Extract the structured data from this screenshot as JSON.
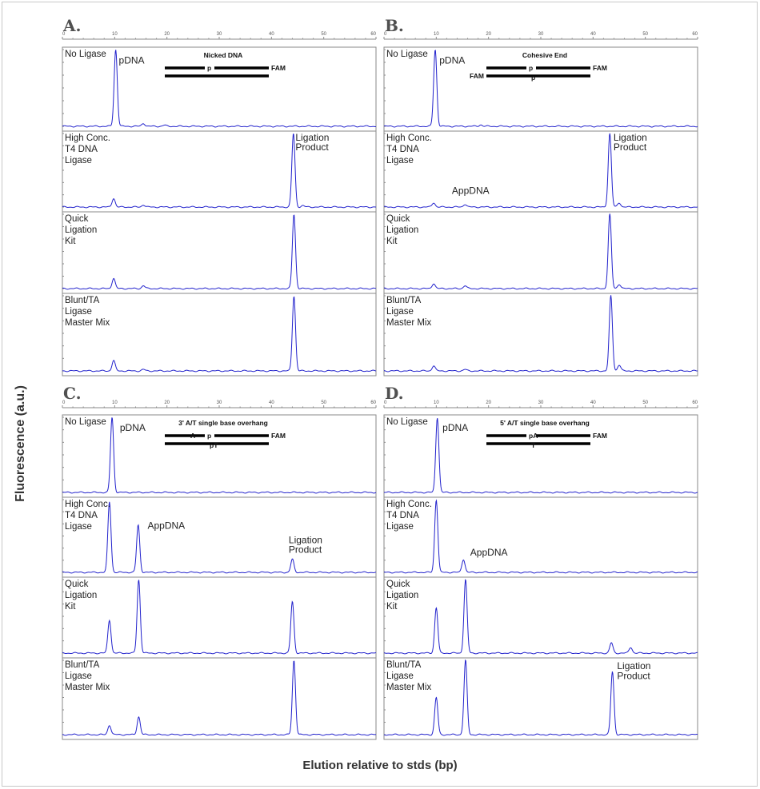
{
  "figure": {
    "y_axis_label": "Fluorescence (a.u.)",
    "x_axis_label": "Elution relative to stds (bp)"
  },
  "colors": {
    "trace": "#2222cc",
    "frame": "#8a8a8a"
  },
  "chart_data": [
    {
      "type": "line",
      "panel": "A.",
      "x_ticks": [
        "0",
        "10",
        "20",
        "30",
        "40",
        "50",
        "60"
      ],
      "xlim": [
        0,
        60
      ],
      "schematic": {
        "title": "Nicked DNA",
        "top_strand": {
          "left_label": "",
          "mid_label": "p",
          "right_label": "FAM"
        },
        "bottom_strand": {
          "left_label": "",
          "mid_label": "",
          "right_label": ""
        }
      },
      "lanes": [
        {
          "label": [
            "No Ligase"
          ],
          "peaks": [
            {
              "x": 10.2,
              "h": 1.0
            },
            {
              "x": 15.5,
              "h": 0.04
            },
            {
              "x": 19.5,
              "h": 0.015
            }
          ],
          "annotations": [
            {
              "text": "pDNA",
              "x": 10.8,
              "y": 0.82
            }
          ]
        },
        {
          "label": [
            "High Conc.",
            "T4 DNA",
            "Ligase"
          ],
          "peaks": [
            {
              "x": 9.8,
              "h": 0.12
            },
            {
              "x": 15.5,
              "h": 0.03
            },
            {
              "x": 44.2,
              "h": 1.0
            },
            {
              "x": 46,
              "h": 0.02
            }
          ],
          "annotations": [
            {
              "text": "Ligation",
              "x": 44.6,
              "y": 0.9
            },
            {
              "text": "Product",
              "x": 44.6,
              "y": 0.77
            }
          ]
        },
        {
          "label": [
            "Quick",
            "Ligation",
            "Kit"
          ],
          "peaks": [
            {
              "x": 9.8,
              "h": 0.14
            },
            {
              "x": 15.5,
              "h": 0.04
            },
            {
              "x": 44.3,
              "h": 1.0
            }
          ],
          "annotations": []
        },
        {
          "label": [
            "Blunt/TA",
            "Ligase",
            "Master Mix"
          ],
          "peaks": [
            {
              "x": 9.8,
              "h": 0.14
            },
            {
              "x": 15.5,
              "h": 0.02
            },
            {
              "x": 44.3,
              "h": 1.0
            }
          ],
          "annotations": []
        }
      ]
    },
    {
      "type": "line",
      "panel": "B.",
      "x_ticks": [
        "0",
        "10",
        "20",
        "30",
        "40",
        "50",
        "60"
      ],
      "xlim": [
        0,
        60
      ],
      "schematic": {
        "title": "Cohesive End",
        "top_strand": {
          "left_label": "",
          "mid_label": "p",
          "right_label": "FAM"
        },
        "bottom_strand": {
          "left_label": "FAM",
          "mid_label": "p",
          "right_label": ""
        }
      },
      "lanes": [
        {
          "label": [
            "No Ligase"
          ],
          "peaks": [
            {
              "x": 9.8,
              "h": 1.0
            },
            {
              "x": 18.5,
              "h": 0.02
            }
          ],
          "annotations": [
            {
              "text": "pDNA",
              "x": 10.6,
              "y": 0.82
            }
          ]
        },
        {
          "label": [
            "High Conc.",
            "T4 DNA",
            "Ligase"
          ],
          "peaks": [
            {
              "x": 9.5,
              "h": 0.06
            },
            {
              "x": 15.5,
              "h": 0.04
            },
            {
              "x": 43.2,
              "h": 1.0
            },
            {
              "x": 45,
              "h": 0.06
            }
          ],
          "annotations": [
            {
              "text": "AppDNA",
              "x": 13,
              "y": 0.18
            },
            {
              "text": "Ligation",
              "x": 43.9,
              "y": 0.9
            },
            {
              "text": "Product",
              "x": 43.9,
              "y": 0.77
            }
          ]
        },
        {
          "label": [
            "Quick",
            "Ligation",
            "Kit"
          ],
          "peaks": [
            {
              "x": 9.5,
              "h": 0.07
            },
            {
              "x": 15.5,
              "h": 0.04
            },
            {
              "x": 43.2,
              "h": 1.0
            },
            {
              "x": 45,
              "h": 0.06
            }
          ],
          "annotations": []
        },
        {
          "label": [
            "Blunt/TA",
            "Ligase",
            "Master Mix"
          ],
          "peaks": [
            {
              "x": 9.5,
              "h": 0.07
            },
            {
              "x": 15.5,
              "h": 0.02
            },
            {
              "x": 43.4,
              "h": 1.0
            },
            {
              "x": 45,
              "h": 0.08
            }
          ],
          "annotations": []
        }
      ]
    },
    {
      "type": "line",
      "panel": "C.",
      "x_ticks": [
        "0",
        "10",
        "20",
        "30",
        "40",
        "50",
        "60"
      ],
      "xlim": [
        0,
        60
      ],
      "schematic": {
        "title": "3' A/T single base overhang",
        "top_strand": {
          "left_label": "A",
          "mid_label": "p",
          "right_label": "FAM"
        },
        "bottom_strand": {
          "left_label": "",
          "mid_label": "pT",
          "right_label": ""
        }
      },
      "lanes": [
        {
          "label": [
            "No Ligase"
          ],
          "peaks": [
            {
              "x": 9.5,
              "h": 1.0
            }
          ],
          "annotations": [
            {
              "text": "pDNA",
              "x": 11,
              "y": 0.82
            }
          ]
        },
        {
          "label": [
            "High Conc.",
            "T4 DNA",
            "Ligase"
          ],
          "peaks": [
            {
              "x": 9,
              "h": 0.97
            },
            {
              "x": 14.5,
              "h": 0.65
            },
            {
              "x": 44,
              "h": 0.18
            }
          ],
          "annotations": [
            {
              "text": "AppDNA",
              "x": 16.3,
              "y": 0.6
            },
            {
              "text": "Ligation",
              "x": 43.3,
              "y": 0.4
            },
            {
              "text": "Product",
              "x": 43.3,
              "y": 0.27
            }
          ]
        },
        {
          "label": [
            "Quick",
            "Ligation",
            "Kit"
          ],
          "peaks": [
            {
              "x": 9,
              "h": 0.45
            },
            {
              "x": 14.6,
              "h": 1.0
            },
            {
              "x": 44,
              "h": 0.7
            }
          ],
          "annotations": []
        },
        {
          "label": [
            "Blunt/TA",
            "Ligase",
            "Master Mix"
          ],
          "peaks": [
            {
              "x": 9,
              "h": 0.13
            },
            {
              "x": 14.6,
              "h": 0.24
            },
            {
              "x": 44.3,
              "h": 1.0
            }
          ],
          "annotations": []
        }
      ]
    },
    {
      "type": "line",
      "panel": "D.",
      "x_ticks": [
        "0",
        "10",
        "20",
        "30",
        "40",
        "50",
        "60"
      ],
      "xlim": [
        0,
        60
      ],
      "schematic": {
        "title": "5' A/T single base overhang",
        "top_strand": {
          "left_label": "",
          "mid_label": "pA",
          "right_label": "FAM"
        },
        "bottom_strand": {
          "left_label": "",
          "mid_label": "T",
          "right_label": ""
        }
      },
      "lanes": [
        {
          "label": [
            "No Ligase"
          ],
          "peaks": [
            {
              "x": 10.2,
              "h": 1.0
            }
          ],
          "annotations": [
            {
              "text": "pDNA",
              "x": 11.2,
              "y": 0.82
            }
          ]
        },
        {
          "label": [
            "High Conc.",
            "T4 DNA",
            "Ligase"
          ],
          "peaks": [
            {
              "x": 10,
              "h": 1.0
            },
            {
              "x": 15.2,
              "h": 0.18
            }
          ],
          "annotations": [
            {
              "text": "AppDNA",
              "x": 16.5,
              "y": 0.23
            }
          ]
        },
        {
          "label": [
            "Quick",
            "Ligation",
            "Kit"
          ],
          "peaks": [
            {
              "x": 10,
              "h": 0.62
            },
            {
              "x": 15.6,
              "h": 1.0
            },
            {
              "x": 43.5,
              "h": 0.14
            },
            {
              "x": 47.2,
              "h": 0.08
            }
          ],
          "annotations": []
        },
        {
          "label": [
            "Blunt/TA",
            "Ligase",
            "Master Mix"
          ],
          "peaks": [
            {
              "x": 10,
              "h": 0.5
            },
            {
              "x": 15.6,
              "h": 1.0
            },
            {
              "x": 43.7,
              "h": 0.85
            }
          ],
          "annotations": [
            {
              "text": "Ligation",
              "x": 44.6,
              "y": 0.88
            },
            {
              "text": "Product",
              "x": 44.6,
              "y": 0.75
            }
          ]
        }
      ]
    }
  ]
}
